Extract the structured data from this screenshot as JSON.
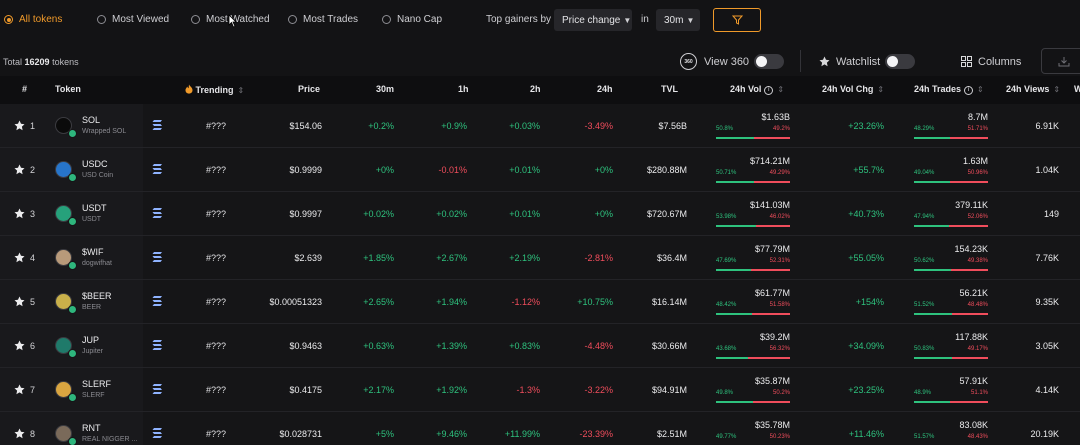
{
  "filters": {
    "radios": [
      "All tokens",
      "Most Viewed",
      "Most Watched",
      "Most Trades",
      "Nano Cap"
    ],
    "active": "All tokens",
    "top_gainers_label": "Top gainers by",
    "metric_select": "Price change",
    "in_label": "in",
    "interval_select": "30m"
  },
  "toolbar": {
    "total_prefix": "Total",
    "total_count": "16209",
    "total_suffix": "tokens",
    "view360_icon_text": "360",
    "view360_label": "View 360",
    "watchlist_label": "Watchlist",
    "columns_label": "Columns"
  },
  "columns": {
    "rank": "#",
    "token": "Token",
    "trending": "Trending",
    "price": "Price",
    "c30m": "30m",
    "c1h": "1h",
    "c2h": "2h",
    "c24h": "24h",
    "tvl": "TVL",
    "vol": "24h Vol",
    "volchg": "24h Vol Chg",
    "trades": "24h Trades",
    "views": "24h Views",
    "extra": "W"
  },
  "rows": [
    {
      "rank": "1",
      "symbol": "SOL",
      "name": "Wrapped SOL",
      "icon": "sol-icon",
      "color": "#0b0b0b",
      "trending": "#???",
      "price": "$154.06",
      "c30m": "+0.2%",
      "c1h": "+0.9%",
      "c2h": "+0.03%",
      "c24h": "-3.49%",
      "tvl": "$7.56B",
      "vol": "$1.63B",
      "vol_buy": "50.8%",
      "vol_sell": "49.2%",
      "vol_buy_frac": 0.508,
      "volchg": "+23.26%",
      "trades": "8.7M",
      "tr_buy": "48.29%",
      "tr_sell": "51.71%",
      "tr_buy_frac": 0.4829,
      "views": "6.91K"
    },
    {
      "rank": "2",
      "symbol": "USDC",
      "name": "USD Coin",
      "icon": "usdc-icon",
      "color": "#2775ca",
      "trending": "#???",
      "price": "$0.9999",
      "c30m": "+0%",
      "c1h": "-0.01%",
      "c2h": "+0.01%",
      "c24h": "+0%",
      "tvl": "$280.88M",
      "vol": "$714.21M",
      "vol_buy": "50.71%",
      "vol_sell": "49.29%",
      "vol_buy_frac": 0.5071,
      "volchg": "+55.7%",
      "trades": "1.63M",
      "tr_buy": "49.04%",
      "tr_sell": "50.96%",
      "tr_buy_frac": 0.4904,
      "views": "1.04K"
    },
    {
      "rank": "3",
      "symbol": "USDT",
      "name": "USDT",
      "icon": "usdt-icon",
      "color": "#26a17b",
      "trending": "#???",
      "price": "$0.9997",
      "c30m": "+0.02%",
      "c1h": "+0.02%",
      "c2h": "+0.01%",
      "c24h": "+0%",
      "tvl": "$720.67M",
      "vol": "$141.03M",
      "vol_buy": "53.98%",
      "vol_sell": "46.02%",
      "vol_buy_frac": 0.5398,
      "volchg": "+40.73%",
      "trades": "379.11K",
      "tr_buy": "47.94%",
      "tr_sell": "52.06%",
      "tr_buy_frac": 0.4794,
      "views": "149"
    },
    {
      "rank": "4",
      "symbol": "$WIF",
      "name": "dogwifhat",
      "icon": "wif-icon",
      "color": "#b89a7a",
      "trending": "#???",
      "price": "$2.639",
      "c30m": "+1.85%",
      "c1h": "+2.67%",
      "c2h": "+2.19%",
      "c24h": "-2.81%",
      "tvl": "$36.4M",
      "vol": "$77.79M",
      "vol_buy": "47.69%",
      "vol_sell": "52.31%",
      "vol_buy_frac": 0.4769,
      "volchg": "+55.05%",
      "trades": "154.23K",
      "tr_buy": "50.62%",
      "tr_sell": "49.38%",
      "tr_buy_frac": 0.5062,
      "views": "7.76K"
    },
    {
      "rank": "5",
      "symbol": "$BEER",
      "name": "BEER",
      "icon": "beer-icon",
      "color": "#c9b04a",
      "trending": "#???",
      "price": "$0.00051323",
      "c30m": "+2.65%",
      "c1h": "+1.94%",
      "c2h": "-1.12%",
      "c24h": "+10.75%",
      "tvl": "$16.14M",
      "vol": "$61.77M",
      "vol_buy": "48.42%",
      "vol_sell": "51.58%",
      "vol_buy_frac": 0.4842,
      "volchg": "+154%",
      "trades": "56.21K",
      "tr_buy": "51.52%",
      "tr_sell": "48.48%",
      "tr_buy_frac": 0.5152,
      "views": "9.35K"
    },
    {
      "rank": "6",
      "symbol": "JUP",
      "name": "Jupiter",
      "icon": "jup-icon",
      "color": "#1f7a6a",
      "trending": "#???",
      "price": "$0.9463",
      "c30m": "+0.63%",
      "c1h": "+1.39%",
      "c2h": "+0.83%",
      "c24h": "-4.48%",
      "tvl": "$30.66M",
      "vol": "$39.2M",
      "vol_buy": "43.68%",
      "vol_sell": "56.32%",
      "vol_buy_frac": 0.4368,
      "volchg": "+34.09%",
      "trades": "117.88K",
      "tr_buy": "50.83%",
      "tr_sell": "49.17%",
      "tr_buy_frac": 0.5083,
      "views": "3.05K"
    },
    {
      "rank": "7",
      "symbol": "SLERF",
      "name": "SLERF",
      "icon": "slerf-icon",
      "color": "#d9a540",
      "trending": "#???",
      "price": "$0.4175",
      "c30m": "+2.17%",
      "c1h": "+1.92%",
      "c2h": "-1.3%",
      "c24h": "-3.22%",
      "tvl": "$94.91M",
      "vol": "$35.87M",
      "vol_buy": "49.8%",
      "vol_sell": "50.2%",
      "vol_buy_frac": 0.498,
      "volchg": "+23.25%",
      "trades": "57.91K",
      "tr_buy": "48.9%",
      "tr_sell": "51.1%",
      "tr_buy_frac": 0.489,
      "views": "4.14K"
    },
    {
      "rank": "8",
      "symbol": "RNT",
      "name": "REAL NIGGER ...",
      "icon": "rnt-icon",
      "color": "#7a6a5a",
      "trending": "#???",
      "price": "$0.028731",
      "c30m": "+5%",
      "c1h": "+9.46%",
      "c2h": "+11.99%",
      "c24h": "-23.39%",
      "tvl": "$2.51M",
      "vol": "$35.78M",
      "vol_buy": "49.77%",
      "vol_sell": "50.23%",
      "vol_buy_frac": 0.4977,
      "volchg": "+11.46%",
      "trades": "83.08K",
      "tr_buy": "51.57%",
      "tr_sell": "48.43%",
      "tr_buy_frac": 0.5157,
      "views": "20.19K"
    }
  ],
  "colors": {
    "accent": "#f09a2a",
    "positive": "#2ec27e",
    "negative": "#f04d5c"
  }
}
